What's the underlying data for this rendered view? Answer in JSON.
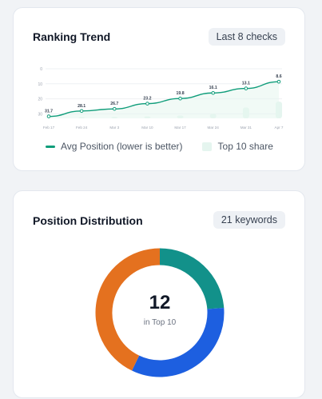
{
  "trend": {
    "title": "Ranking Trend",
    "badge": "Last 8 checks",
    "legend_line": "Avg Position (lower is better)",
    "legend_area": "Top 10 share",
    "colors": {
      "line": "#0f9d7a",
      "area": "#e5f5ef",
      "grid": "#eef0f3"
    }
  },
  "chart_data": {
    "type": "line",
    "categories": [
      "Feb 17",
      "Feb 24",
      "Mar 3",
      "Mar 10",
      "Mar 17",
      "Mar 24",
      "Mar 31",
      "Apr 7"
    ],
    "series": [
      {
        "name": "Avg Position (lower is better)",
        "values": [
          31.7,
          28.1,
          26.7,
          23.2,
          19.8,
          16.1,
          13.1,
          8.6
        ]
      },
      {
        "name": "Top 10 share",
        "values": [
          0.02,
          0.04,
          0.05,
          0.07,
          0.1,
          0.16,
          0.38,
          0.58
        ]
      }
    ],
    "y_ticks": [
      "0",
      "10",
      "20",
      "30"
    ],
    "ylim": [
      0,
      33
    ],
    "y_inverted": true,
    "grid": true
  },
  "distribution": {
    "title": "Position Distribution",
    "badge": "21 keywords",
    "center_value": "12",
    "center_label": "in Top 10",
    "chart_data": {
      "type": "pie",
      "slices": [
        {
          "value": 5,
          "color": "#12918a"
        },
        {
          "value": 7,
          "color": "#1d5fe0"
        },
        {
          "value": 9,
          "color": "#e4711f"
        }
      ]
    }
  }
}
